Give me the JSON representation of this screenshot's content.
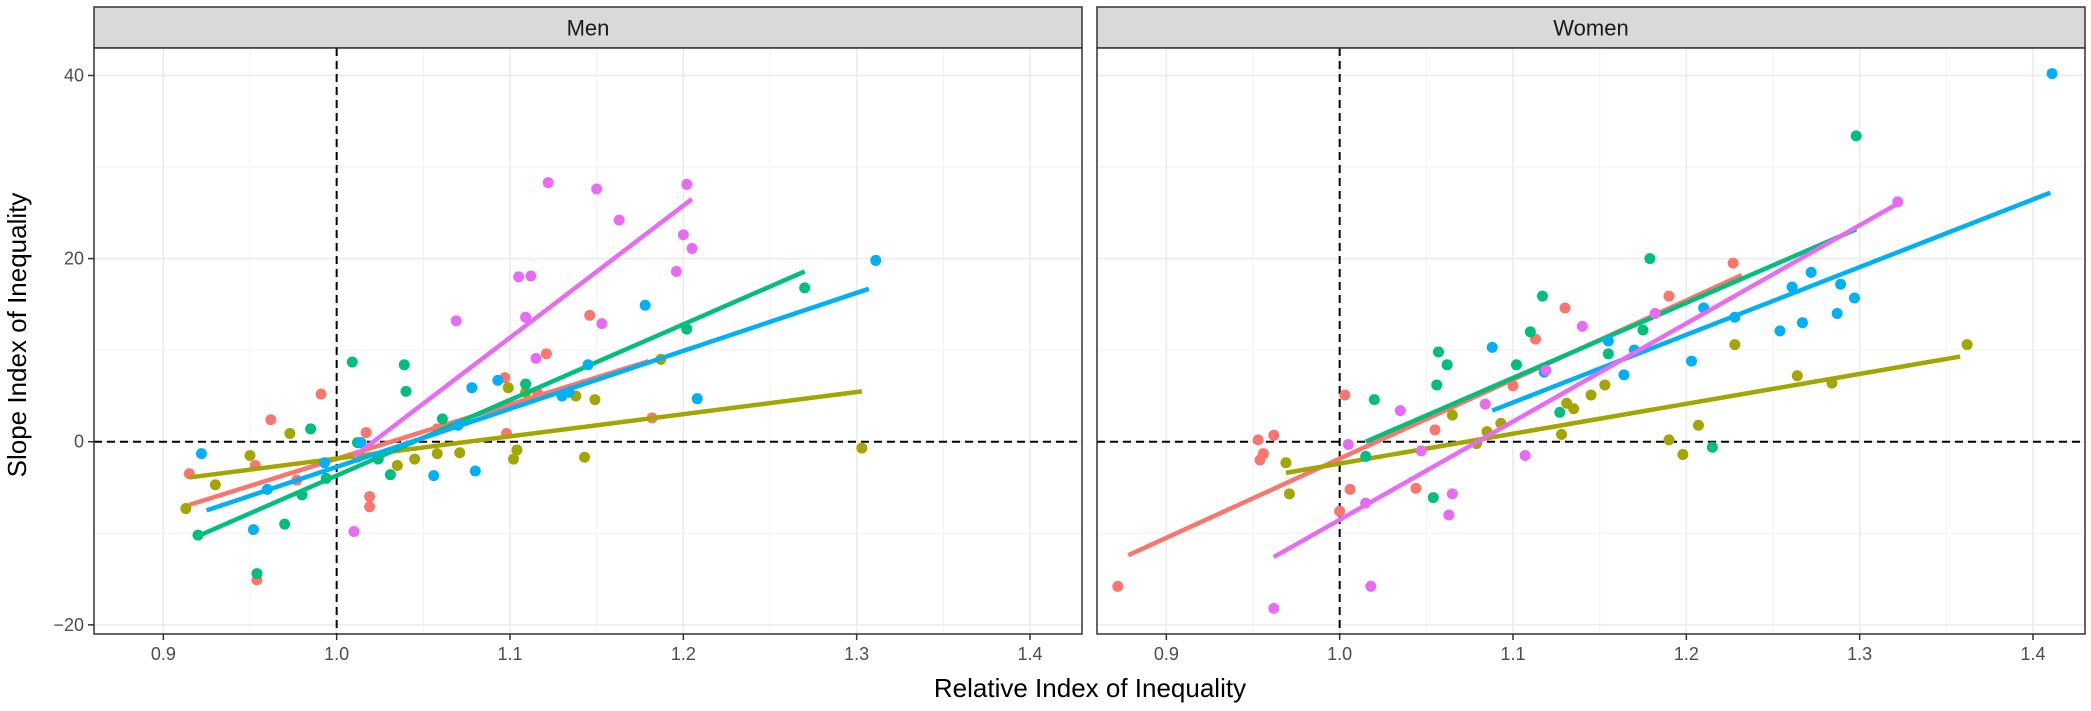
{
  "chart_data": {
    "type": "scatter",
    "xlabel": "Relative Index of Inequality",
    "ylabel": "Slope Index of Inequality",
    "xlim": [
      0.86,
      1.43
    ],
    "ylim": [
      -21,
      43
    ],
    "x_ticks": [
      0.9,
      1.0,
      1.1,
      1.2,
      1.3,
      1.4
    ],
    "x_tick_labels": [
      "0.9",
      "1.0",
      "1.1",
      "1.2",
      "1.3",
      "1.4"
    ],
    "y_ticks": [
      -20,
      0,
      20,
      40
    ],
    "y_tick_labels": [
      "−20",
      "0",
      "20",
      "40"
    ],
    "reference_lines": {
      "x": 1.0,
      "y": 0
    },
    "grid": true,
    "legend": "none",
    "colors": [
      "#F8766D",
      "#A3A500",
      "#00BF7D",
      "#00B0F6",
      "#E76BF3"
    ],
    "panels": [
      {
        "label": "Men",
        "series": [
          {
            "color": "#F8766D",
            "points": [
              [
                0.915,
                -3.5
              ],
              [
                0.953,
                -2.6
              ],
              [
                0.954,
                -15.1
              ],
              [
                0.962,
                2.4
              ],
              [
                0.977,
                -4.2
              ],
              [
                0.991,
                5.2
              ],
              [
                1.017,
                1.0
              ],
              [
                1.019,
                -7.1
              ],
              [
                1.019,
                -6.0
              ],
              [
                1.058,
                1.4
              ],
              [
                1.097,
                7.0
              ],
              [
                1.098,
                0.9
              ],
              [
                1.116,
                5.3
              ],
              [
                1.121,
                9.6
              ],
              [
                1.146,
                13.8
              ],
              [
                1.182,
                2.6
              ]
            ],
            "fit": [
              [
                0.915,
                -6.9
              ],
              [
                1.18,
                8.8
              ]
            ]
          },
          {
            "color": "#A3A500",
            "points": [
              [
                0.913,
                -7.3
              ],
              [
                0.93,
                -4.7
              ],
              [
                0.95,
                -1.5
              ],
              [
                0.973,
                0.9
              ],
              [
                1.012,
                -1.7
              ],
              [
                1.035,
                -2.6
              ],
              [
                1.045,
                -1.9
              ],
              [
                1.058,
                -1.3
              ],
              [
                1.071,
                -1.2
              ],
              [
                1.099,
                5.9
              ],
              [
                1.102,
                -1.9
              ],
              [
                1.104,
                -0.9
              ],
              [
                1.109,
                5.4
              ],
              [
                1.138,
                5.0
              ],
              [
                1.143,
                -1.7
              ],
              [
                1.149,
                4.6
              ],
              [
                1.187,
                9.0
              ],
              [
                1.303,
                -0.7
              ]
            ],
            "fit": [
              [
                0.915,
                -3.9
              ],
              [
                1.303,
                5.5
              ]
            ]
          },
          {
            "color": "#00BF7D",
            "points": [
              [
                0.92,
                -10.2
              ],
              [
                0.954,
                -14.4
              ],
              [
                0.97,
                -9.0
              ],
              [
                0.98,
                -5.8
              ],
              [
                0.985,
                1.4
              ],
              [
                0.994,
                -4.0
              ],
              [
                1.009,
                8.7
              ],
              [
                1.012,
                -0.1
              ],
              [
                1.024,
                -1.9
              ],
              [
                1.031,
                -3.6
              ],
              [
                1.039,
                8.4
              ],
              [
                1.04,
                5.5
              ],
              [
                1.061,
                2.5
              ],
              [
                1.109,
                6.3
              ],
              [
                1.202,
                12.3
              ],
              [
                1.27,
                16.8
              ]
            ],
            "fit": [
              [
                0.92,
                -10.3
              ],
              [
                1.27,
                18.6
              ]
            ]
          },
          {
            "color": "#00B0F6",
            "points": [
              [
                0.922,
                -1.3
              ],
              [
                0.952,
                -9.6
              ],
              [
                0.96,
                -5.2
              ],
              [
                0.993,
                -2.3
              ],
              [
                1.014,
                -0.1
              ],
              [
                1.056,
                -3.7
              ],
              [
                1.07,
                1.8
              ],
              [
                1.078,
                5.9
              ],
              [
                1.08,
                -3.2
              ],
              [
                1.093,
                6.7
              ],
              [
                1.13,
                5.0
              ],
              [
                1.134,
                5.4
              ],
              [
                1.145,
                8.4
              ],
              [
                1.178,
                14.9
              ],
              [
                1.208,
                4.7
              ],
              [
                1.311,
                19.8
              ]
            ],
            "fit": [
              [
                0.925,
                -7.5
              ],
              [
                1.307,
                16.7
              ]
            ]
          },
          {
            "color": "#E76BF3",
            "points": [
              [
                1.01,
                -9.8
              ],
              [
                1.069,
                13.2
              ],
              [
                1.105,
                18.0
              ],
              [
                1.109,
                13.6
              ],
              [
                1.112,
                18.1
              ],
              [
                1.115,
                9.1
              ],
              [
                1.122,
                28.3
              ],
              [
                1.15,
                27.6
              ],
              [
                1.153,
                12.9
              ],
              [
                1.163,
                24.2
              ],
              [
                1.196,
                18.6
              ],
              [
                1.2,
                22.6
              ],
              [
                1.202,
                28.1
              ],
              [
                1.205,
                21.1
              ]
            ],
            "fit": [
              [
                1.01,
                -1.6
              ],
              [
                1.205,
                26.5
              ]
            ]
          }
        ]
      },
      {
        "label": "Women",
        "series": [
          {
            "color": "#F8766D",
            "points": [
              [
                0.872,
                -15.8
              ],
              [
                0.953,
                0.2
              ],
              [
                0.954,
                -2.0
              ],
              [
                0.956,
                -1.3
              ],
              [
                0.962,
                0.7
              ],
              [
                1.0,
                -7.6
              ],
              [
                1.003,
                5.1
              ],
              [
                1.006,
                -5.2
              ],
              [
                1.044,
                -5.1
              ],
              [
                1.055,
                1.3
              ],
              [
                1.1,
                6.1
              ],
              [
                1.113,
                11.2
              ],
              [
                1.13,
                14.6
              ],
              [
                1.19,
                15.9
              ],
              [
                1.227,
                19.5
              ]
            ],
            "fit": [
              [
                0.878,
                -12.4
              ],
              [
                1.232,
                18.2
              ]
            ]
          },
          {
            "color": "#A3A500",
            "points": [
              [
                0.969,
                -2.3
              ],
              [
                0.971,
                -5.7
              ],
              [
                1.065,
                2.9
              ],
              [
                1.079,
                -0.2
              ],
              [
                1.085,
                1.1
              ],
              [
                1.093,
                2.0
              ],
              [
                1.128,
                0.8
              ],
              [
                1.131,
                4.2
              ],
              [
                1.135,
                3.6
              ],
              [
                1.145,
                5.1
              ],
              [
                1.153,
                6.2
              ],
              [
                1.19,
                0.2
              ],
              [
                1.198,
                -1.4
              ],
              [
                1.207,
                1.8
              ],
              [
                1.228,
                10.6
              ],
              [
                1.264,
                7.2
              ],
              [
                1.284,
                6.4
              ],
              [
                1.362,
                10.6
              ]
            ],
            "fit": [
              [
                0.969,
                -3.4
              ],
              [
                1.358,
                9.3
              ]
            ]
          },
          {
            "color": "#00BF7D",
            "points": [
              [
                1.015,
                -1.6
              ],
              [
                1.02,
                4.6
              ],
              [
                1.054,
                -6.1
              ],
              [
                1.056,
                6.2
              ],
              [
                1.057,
                9.8
              ],
              [
                1.062,
                8.4
              ],
              [
                1.102,
                8.4
              ],
              [
                1.11,
                12.0
              ],
              [
                1.117,
                15.9
              ],
              [
                1.127,
                3.2
              ],
              [
                1.155,
                9.6
              ],
              [
                1.175,
                12.2
              ],
              [
                1.179,
                20.0
              ],
              [
                1.215,
                -0.6
              ],
              [
                1.298,
                33.4
              ]
            ],
            "fit": [
              [
                1.015,
                0.0
              ],
              [
                1.298,
                23.2
              ]
            ]
          },
          {
            "color": "#00B0F6",
            "points": [
              [
                1.088,
                10.3
              ],
              [
                1.118,
                7.6
              ],
              [
                1.155,
                11.0
              ],
              [
                1.164,
                7.3
              ],
              [
                1.17,
                10.0
              ],
              [
                1.203,
                8.8
              ],
              [
                1.21,
                14.6
              ],
              [
                1.228,
                13.6
              ],
              [
                1.254,
                12.1
              ],
              [
                1.261,
                16.9
              ],
              [
                1.267,
                13.0
              ],
              [
                1.272,
                18.5
              ],
              [
                1.287,
                14.0
              ],
              [
                1.289,
                17.2
              ],
              [
                1.297,
                15.7
              ],
              [
                1.411,
                40.2
              ]
            ],
            "fit": [
              [
                1.088,
                3.4
              ],
              [
                1.41,
                27.2
              ]
            ]
          },
          {
            "color": "#E76BF3",
            "points": [
              [
                0.962,
                -18.2
              ],
              [
                1.005,
                -0.3
              ],
              [
                1.015,
                -6.7
              ],
              [
                1.018,
                -15.8
              ],
              [
                1.035,
                3.4
              ],
              [
                1.047,
                -1.0
              ],
              [
                1.063,
                -8.0
              ],
              [
                1.065,
                -5.7
              ],
              [
                1.084,
                4.1
              ],
              [
                1.107,
                -1.5
              ],
              [
                1.119,
                7.8
              ],
              [
                1.14,
                12.6
              ],
              [
                1.182,
                14.0
              ],
              [
                1.322,
                26.2
              ]
            ],
            "fit": [
              [
                0.962,
                -12.6
              ],
              [
                1.322,
                26.0
              ]
            ]
          }
        ]
      }
    ]
  }
}
